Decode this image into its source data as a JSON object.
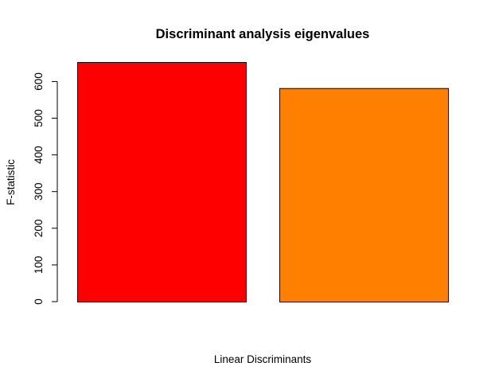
{
  "chart_data": {
    "type": "bar",
    "title": "Discriminant analysis eigenvalues",
    "xlabel": "Linear Discriminants",
    "ylabel": "F-statistic",
    "categories": [
      "",
      ""
    ],
    "values": [
      653,
      582
    ],
    "colors": [
      "#ff0000",
      "#ff7f00"
    ],
    "ylim": [
      0,
      653
    ],
    "yticks": [
      0,
      100,
      200,
      300,
      400,
      500,
      600
    ],
    "grid": false,
    "legend": "none"
  }
}
